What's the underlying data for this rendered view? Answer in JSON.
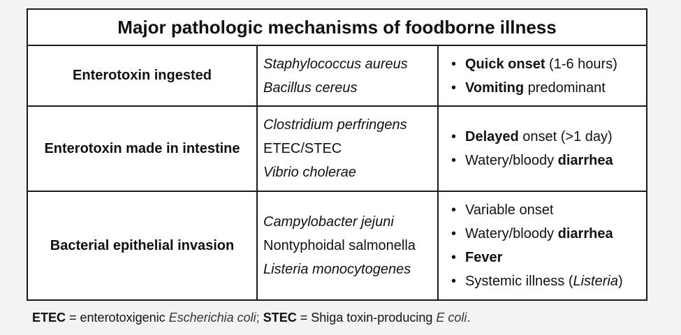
{
  "title": "Major pathologic mechanisms of foodborne illness",
  "rows": [
    {
      "mechanism": "Enterotoxin ingested",
      "organisms": [
        {
          "text": "Staphylococcus aureus",
          "italic": true
        },
        {
          "text": "Bacillus cereus",
          "italic": true
        }
      ],
      "features": [
        [
          {
            "t": "Quick onset",
            "b": true
          },
          {
            "t": " (1-6 hours)"
          }
        ],
        [
          {
            "t": "Vomiting",
            "b": true
          },
          {
            "t": " predominant"
          }
        ]
      ]
    },
    {
      "mechanism": "Enterotoxin made in intestine",
      "organisms": [
        {
          "text": "Clostridium perfringens",
          "italic": true
        },
        {
          "text": "ETEC/STEC",
          "italic": false
        },
        {
          "text": "Vibrio cholerae",
          "italic": true
        }
      ],
      "features": [
        [
          {
            "t": "Delayed",
            "b": true
          },
          {
            "t": " onset (>1 day)"
          }
        ],
        [
          {
            "t": "Watery/bloody "
          },
          {
            "t": "diarrhea",
            "b": true
          }
        ]
      ]
    },
    {
      "mechanism": "Bacterial epithelial invasion",
      "organisms": [
        {
          "text": "Campylobacter jejuni",
          "italic": true
        },
        {
          "text": "Nontyphoidal salmonella",
          "italic": false
        },
        {
          "text": "Listeria monocytogenes",
          "italic": true
        }
      ],
      "features": [
        [
          {
            "t": "Variable onset"
          }
        ],
        [
          {
            "t": "Watery/bloody "
          },
          {
            "t": "diarrhea",
            "b": true
          }
        ],
        [
          {
            "t": "Fever",
            "b": true
          }
        ],
        [
          {
            "t": "Systemic illness ("
          },
          {
            "t": "Listeria",
            "i": true
          },
          {
            "t": ")"
          }
        ]
      ]
    }
  ],
  "footnote": {
    "etec_abbr": "ETEC",
    "etec_def": " = enterotoxigenic ",
    "etec_organism": "Escherichia coli",
    "sep": "; ",
    "stec_abbr": "STEC",
    "stec_def": " = Shiga toxin-producing ",
    "stec_organism": "E coli",
    "end": "."
  }
}
